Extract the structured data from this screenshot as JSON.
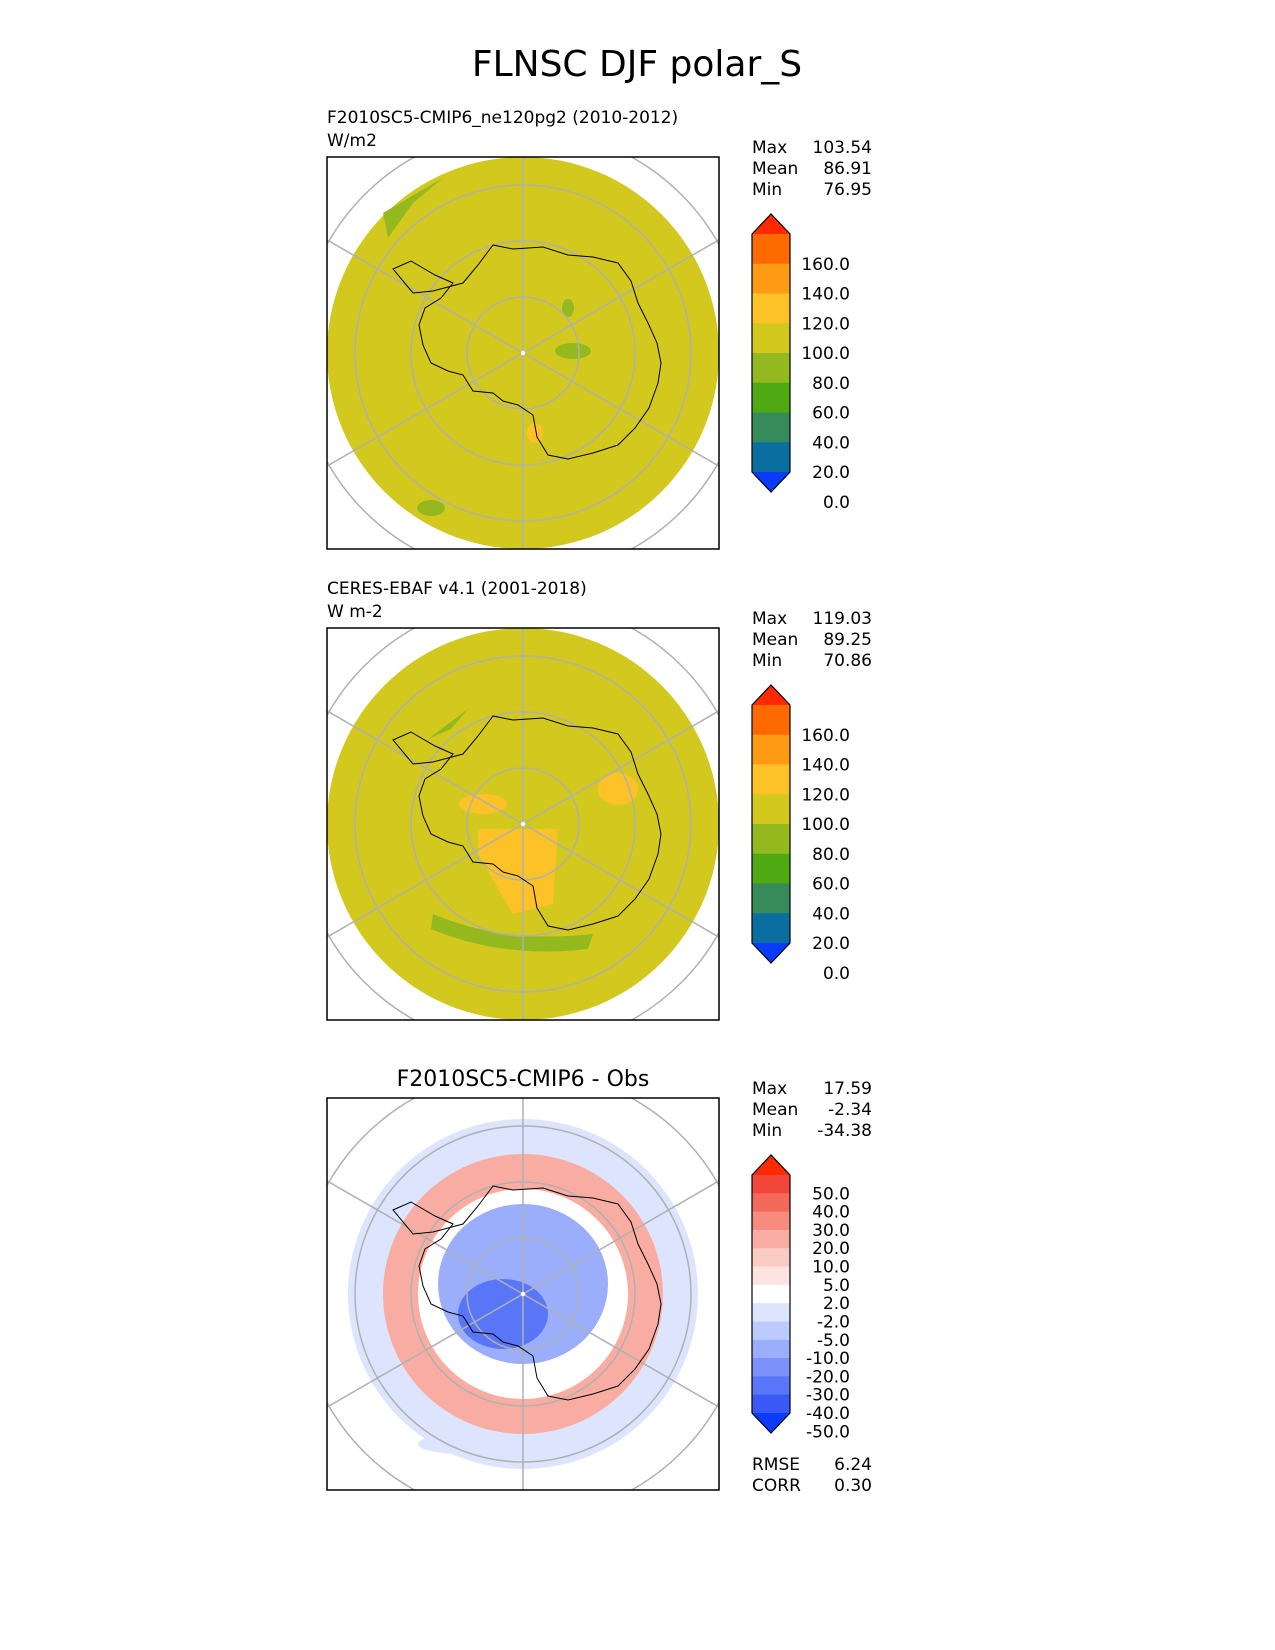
{
  "figure_title": "FLNSC DJF polar_S",
  "panels": [
    {
      "title_line1": "F2010SC5-CMIP6_ne120pg2 (2010-2012)",
      "title_line2": "W/m2",
      "center_title": "",
      "stats": [
        {
          "label": "Max",
          "value": "103.54"
        },
        {
          "label": "Mean",
          "value": "86.91"
        },
        {
          "label": "Min",
          "value": "76.95"
        }
      ],
      "colorbar": {
        "labels": [
          "160.0",
          "140.0",
          "120.0",
          "100.0",
          "80.0",
          "60.0",
          "40.0",
          "20.0",
          "0.0"
        ],
        "colors": [
          "#ff2a00",
          "#ff6a00",
          "#ff9a14",
          "#fcc228",
          "#d2c81e",
          "#94b91e",
          "#4ea912",
          "#378a5a",
          "#0a6ea0",
          "#0a3cff"
        ]
      },
      "fill_color": "#d2c81e",
      "patches": [
        {
          "color": "#94b91e"
        },
        {
          "color": "#94b91e"
        },
        {
          "color": "#94b91e"
        },
        {
          "color": "#fcc228"
        },
        {
          "color": "#94b91e"
        }
      ],
      "footer": []
    },
    {
      "title_line1": "CERES-EBAF v4.1 (2001-2018)",
      "title_line2": "W m-2",
      "center_title": "",
      "stats": [
        {
          "label": "Max",
          "value": "119.03"
        },
        {
          "label": "Mean",
          "value": "89.25"
        },
        {
          "label": "Min",
          "value": "70.86"
        }
      ],
      "colorbar": {
        "labels": [
          "160.0",
          "140.0",
          "120.0",
          "100.0",
          "80.0",
          "60.0",
          "40.0",
          "20.0",
          "0.0"
        ],
        "colors": [
          "#ff2a00",
          "#ff6a00",
          "#ff9a14",
          "#fcc228",
          "#d2c81e",
          "#94b91e",
          "#4ea912",
          "#378a5a",
          "#0a6ea0",
          "#0a3cff"
        ]
      },
      "fill_color": "#d2c81e",
      "patches": [
        {
          "color": "#94b91e"
        },
        {
          "color": "#fcc228"
        },
        {
          "color": "#fcc228"
        },
        {
          "color": "#fcc228"
        },
        {
          "color": "#94b91e"
        }
      ],
      "footer": []
    },
    {
      "title_line1": "",
      "title_line2": "",
      "center_title": "F2010SC5-CMIP6 - Obs",
      "stats": [
        {
          "label": "Max",
          "value": "17.59"
        },
        {
          "label": "Mean",
          "value": "-2.34"
        },
        {
          "label": "Min",
          "value": "-34.38"
        }
      ],
      "colorbar": {
        "labels": [
          "50.0",
          "40.0",
          "30.0",
          "20.0",
          "10.0",
          "5.0",
          "2.0",
          "-2.0",
          "-5.0",
          "-10.0",
          "-20.0",
          "-30.0",
          "-40.0",
          "-50.0"
        ],
        "colors": [
          "#ff2a00",
          "#f2463a",
          "#f46a5a",
          "#f78c7e",
          "#f9ada2",
          "#fbccc4",
          "#fde4e0",
          "#ffffff",
          "#dde4fe",
          "#bccafe",
          "#9aaefc",
          "#7a92fa",
          "#5a76f8",
          "#3a58f6",
          "#0a3cff"
        ]
      },
      "fill_color": "#ffffff",
      "patches": [
        {
          "color": "#dde4fe"
        },
        {
          "color": "#f9ada2"
        },
        {
          "color": "#9aaefc"
        },
        {
          "color": "#5a76f8"
        },
        {
          "color": "#dde4fe"
        }
      ],
      "footer": [
        {
          "label": "RMSE",
          "value": "6.24"
        },
        {
          "label": "CORR",
          "value": "0.30"
        }
      ]
    }
  ],
  "chart_data": [
    {
      "type": "heatmap",
      "title": "F2010SC5-CMIP6_ne120pg2 (2010-2012)",
      "units": "W/m2",
      "projection": "south polar stereographic",
      "stats": {
        "max": 103.54,
        "mean": 86.91,
        "min": 76.95
      },
      "levels": [
        0,
        20,
        40,
        60,
        80,
        100,
        120,
        140,
        160
      ]
    },
    {
      "type": "heatmap",
      "title": "CERES-EBAF v4.1 (2001-2018)",
      "units": "W m-2",
      "projection": "south polar stereographic",
      "stats": {
        "max": 119.03,
        "mean": 89.25,
        "min": 70.86
      },
      "levels": [
        0,
        20,
        40,
        60,
        80,
        100,
        120,
        140,
        160
      ]
    },
    {
      "type": "heatmap",
      "title": "F2010SC5-CMIP6 - Obs",
      "projection": "south polar stereographic",
      "stats": {
        "max": 17.59,
        "mean": -2.34,
        "min": -34.38,
        "rmse": 6.24,
        "corr": 0.3
      },
      "levels": [
        -50,
        -40,
        -30,
        -20,
        -10,
        -5,
        -2,
        2,
        5,
        10,
        20,
        30,
        40,
        50
      ]
    }
  ]
}
